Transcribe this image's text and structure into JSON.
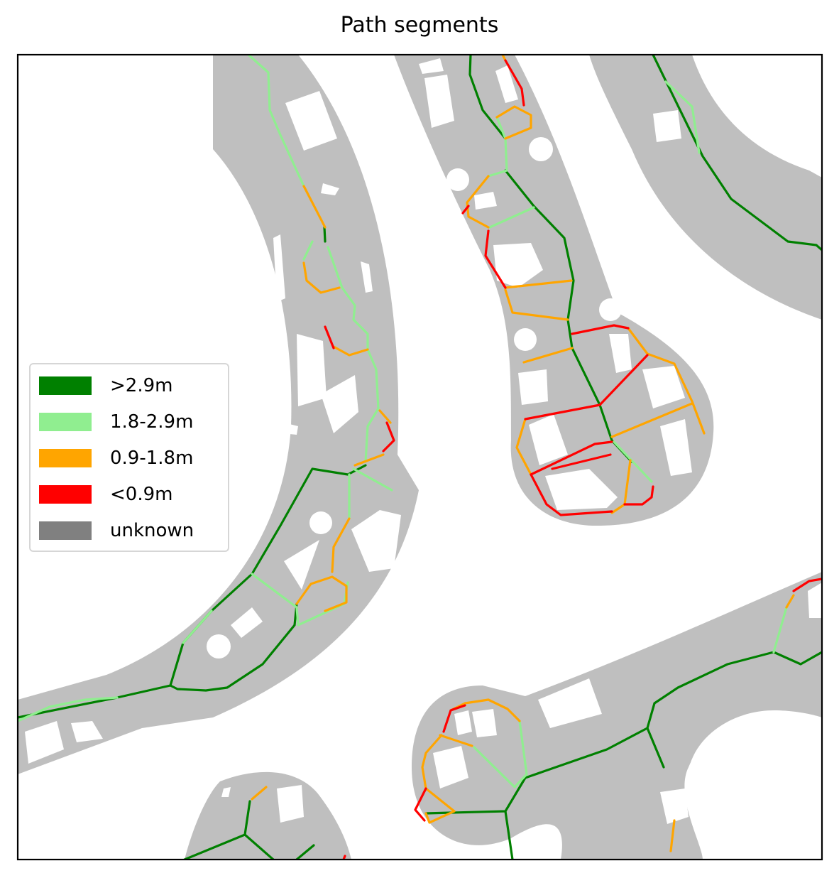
{
  "title": "Path segments",
  "colors": {
    "walkable": "#bfbfbf",
    "background": "#ffffff",
    "frame": "#000000",
    "legend_border": "#d6d6d6"
  },
  "legend": {
    "position": "center-left",
    "items": [
      {
        "label": ">2.9m",
        "color": "#008000"
      },
      {
        "label": "1.8-2.9m",
        "color": "#90ee90"
      },
      {
        "label": "0.9-1.8m",
        "color": "#ffa500"
      },
      {
        "label": "<0.9m",
        "color": "#ff0000"
      },
      {
        "label": "unknown",
        "color": "#808080"
      }
    ]
  }
}
